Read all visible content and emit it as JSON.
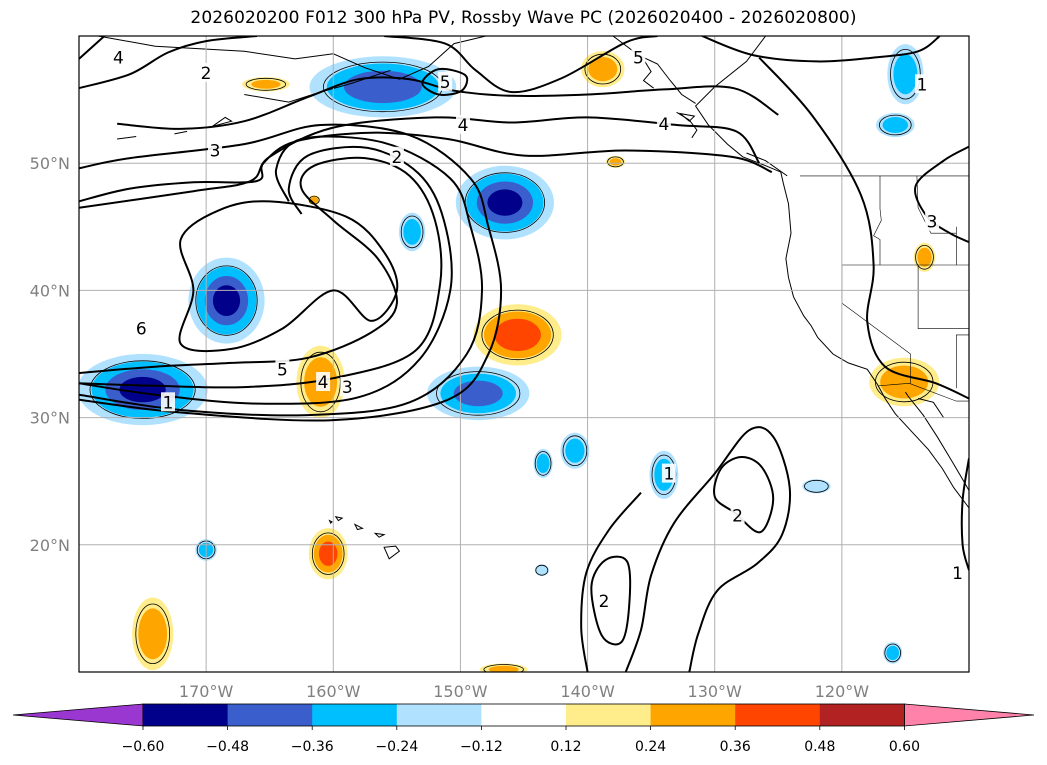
{
  "title": "2026020200 F012 300 hPa PV, Rossby Wave PC (2026020400 - 2026020800)",
  "chart_data": {
    "type": "heatmap",
    "title": "2026020200 F012 300 hPa PV, Rossby Wave PC (2026020400 - 2026020800)",
    "projection": "PlateCarree",
    "lon_range": [
      -180,
      -110
    ],
    "lat_range": [
      10,
      60
    ],
    "grid": true,
    "lon_ticks": [
      {
        "lon": -170,
        "label": "170°W"
      },
      {
        "lon": -160,
        "label": "160°W"
      },
      {
        "lon": -150,
        "label": "150°W"
      },
      {
        "lon": -140,
        "label": "140°W"
      },
      {
        "lon": -130,
        "label": "130°W"
      },
      {
        "lon": -120,
        "label": "120°W"
      }
    ],
    "lat_ticks": [
      {
        "lat": 20,
        "label": "20°N"
      },
      {
        "lat": 30,
        "label": "30°N"
      },
      {
        "lat": 40,
        "label": "40°N"
      },
      {
        "lat": 50,
        "label": "50°N"
      }
    ],
    "colorbar": {
      "orientation": "horizontal",
      "extend": "both",
      "levels": [
        -0.6,
        -0.48,
        -0.36,
        -0.24,
        -0.12,
        0.12,
        0.24,
        0.36,
        0.48,
        0.6
      ],
      "tick_labels": [
        "−0.60",
        "−0.48",
        "−0.36",
        "−0.24",
        "−0.12",
        "0.12",
        "0.24",
        "0.36",
        "0.48",
        "0.60"
      ],
      "colors": [
        "#9a37d0",
        "#00008b",
        "#3a5fcd",
        "#00bfff",
        "#b0e2ff",
        "#ffffff",
        "#ffec8b",
        "#ffa500",
        "#ff4500",
        "#b22222",
        "#ff82ab"
      ]
    },
    "pv_contour_labels": [
      {
        "text": "1",
        "lon": -173.0,
        "lat": 31.2
      },
      {
        "text": "5",
        "lon": -164.0,
        "lat": 33.8
      },
      {
        "text": "6",
        "lon": -175.1,
        "lat": 37.0
      },
      {
        "text": "4",
        "lon": -160.8,
        "lat": 32.8
      },
      {
        "text": "3",
        "lon": -158.9,
        "lat": 32.4
      },
      {
        "text": "2",
        "lon": -155.0,
        "lat": 50.5
      },
      {
        "text": "3",
        "lon": -169.3,
        "lat": 51.0
      },
      {
        "text": "4",
        "lon": -149.8,
        "lat": 53.0
      },
      {
        "text": "5",
        "lon": -151.2,
        "lat": 56.4
      },
      {
        "text": "2",
        "lon": -170.0,
        "lat": 57.1
      },
      {
        "text": "4",
        "lon": -176.9,
        "lat": 58.3
      },
      {
        "text": "5",
        "lon": -136.0,
        "lat": 58.3
      },
      {
        "text": "4",
        "lon": -134.0,
        "lat": 53.1
      },
      {
        "text": "1",
        "lon": -113.7,
        "lat": 56.2
      },
      {
        "text": "3",
        "lon": -112.9,
        "lat": 45.4
      },
      {
        "text": "1",
        "lon": -133.6,
        "lat": 25.6
      },
      {
        "text": "2",
        "lon": -128.2,
        "lat": 22.3
      },
      {
        "text": "2",
        "lon": -138.7,
        "lat": 15.6
      },
      {
        "text": "1",
        "lon": -110.9,
        "lat": 17.8
      }
    ],
    "anomaly_regions": [
      {
        "lon": -148.6,
        "lat": 31.9,
        "rx": 4.2,
        "ry": 2.2,
        "value": -0.4
      },
      {
        "lon": -146.5,
        "lat": 46.9,
        "rx": 4.0,
        "ry": 3.0,
        "value": -0.5
      },
      {
        "lon": -168.4,
        "lat": 39.2,
        "rx": 3.1,
        "ry": 3.5,
        "value": -0.5
      },
      {
        "lon": -175.0,
        "lat": 32.2,
        "rx": 5.3,
        "ry": 2.9,
        "value": -0.5
      },
      {
        "lon": -153.8,
        "lat": 44.6,
        "rx": 1.1,
        "ry": 1.6,
        "value": -0.3
      },
      {
        "lon": -156.1,
        "lat": 56.0,
        "rx": 6.0,
        "ry": 2.5,
        "value": -0.45
      },
      {
        "lon": -115.0,
        "lat": 57.0,
        "rx": 1.5,
        "ry": 2.5,
        "value": -0.3
      },
      {
        "lon": -115.8,
        "lat": 53.0,
        "rx": 1.6,
        "ry": 1.0,
        "value": -0.3
      },
      {
        "lon": -141.0,
        "lat": 27.4,
        "rx": 1.2,
        "ry": 1.5,
        "value": -0.3
      },
      {
        "lon": -143.5,
        "lat": 26.4,
        "rx": 0.8,
        "ry": 1.2,
        "value": -0.3
      },
      {
        "lon": -134.0,
        "lat": 25.5,
        "rx": 1.2,
        "ry": 2.0,
        "value": -0.3
      },
      {
        "lon": -170.0,
        "lat": 19.6,
        "rx": 0.9,
        "ry": 0.9,
        "value": -0.3
      },
      {
        "lon": -122.0,
        "lat": 24.6,
        "rx": 1.2,
        "ry": 0.6,
        "value": -0.2
      },
      {
        "lon": -116.0,
        "lat": 11.5,
        "rx": 0.8,
        "ry": 0.9,
        "value": -0.3
      },
      {
        "lon": -143.6,
        "lat": 18.0,
        "rx": 0.6,
        "ry": 0.5,
        "value": -0.15
      },
      {
        "lon": -145.5,
        "lat": 36.5,
        "rx": 3.6,
        "ry": 2.5,
        "value": 0.45
      },
      {
        "lon": -161.0,
        "lat": 32.8,
        "rx": 2.0,
        "ry": 3.0,
        "value": 0.32
      },
      {
        "lon": -160.4,
        "lat": 19.3,
        "rx": 1.6,
        "ry": 2.1,
        "value": 0.4
      },
      {
        "lon": -174.2,
        "lat": 13.0,
        "rx": 1.7,
        "ry": 3.0,
        "value": 0.34
      },
      {
        "lon": -115.1,
        "lat": 32.8,
        "rx": 2.9,
        "ry": 2.0,
        "value": 0.32
      },
      {
        "lon": -138.8,
        "lat": 57.4,
        "rx": 1.8,
        "ry": 1.5,
        "value": 0.3
      },
      {
        "lon": -165.3,
        "lat": 56.2,
        "rx": 2.0,
        "ry": 0.6,
        "value": 0.25
      },
      {
        "lon": -113.5,
        "lat": 42.6,
        "rx": 0.9,
        "ry": 1.2,
        "value": 0.3
      },
      {
        "lon": -146.6,
        "lat": 10.2,
        "rx": 2.0,
        "ry": 0.5,
        "value": 0.26
      },
      {
        "lon": -161.5,
        "lat": 47.1,
        "rx": 0.5,
        "ry": 0.4,
        "value": 0.3
      },
      {
        "lon": -137.8,
        "lat": 50.1,
        "rx": 0.8,
        "ry": 0.5,
        "value": 0.25
      }
    ]
  }
}
